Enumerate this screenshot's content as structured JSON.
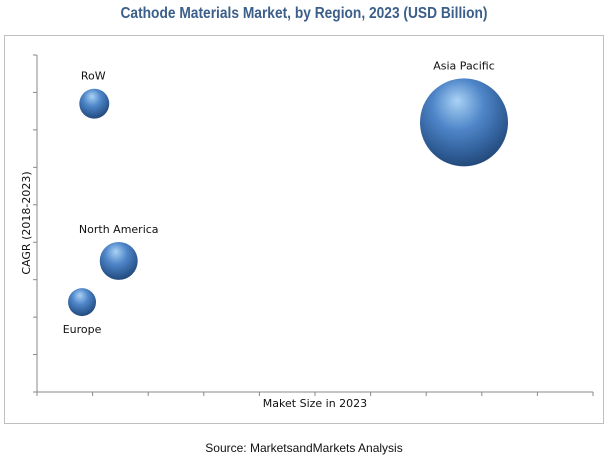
{
  "chart_data": {
    "type": "scatter",
    "subtype": "bubble",
    "title": "Cathode Materials Market, by Region, 2023 (USD Billion)",
    "xlabel": "Maket Size in 2023",
    "ylabel": "CAGR (2018-2023)",
    "xlim": [
      0,
      10
    ],
    "ylim": [
      0,
      9
    ],
    "x_tick_count": 11,
    "y_tick_count": 10,
    "tick_labels_shown": false,
    "grid": false,
    "legend": "none",
    "bubble_color": "#4a7cc0",
    "points": [
      {
        "label": "RoW",
        "x": 1.03,
        "y": 7.7,
        "size": 11.6,
        "label_pos": "above"
      },
      {
        "label": "Asia Pacific",
        "x": 7.68,
        "y": 7.2,
        "size": 100,
        "label_pos": "above"
      },
      {
        "label": "North America",
        "x": 1.47,
        "y": 3.5,
        "size": 18.6,
        "label_pos": "above"
      },
      {
        "label": "Europe",
        "x": 0.81,
        "y": 2.4,
        "size": 10.1,
        "label_pos": "below"
      }
    ]
  },
  "source": "Source: MarketsandMarkets Analysis"
}
